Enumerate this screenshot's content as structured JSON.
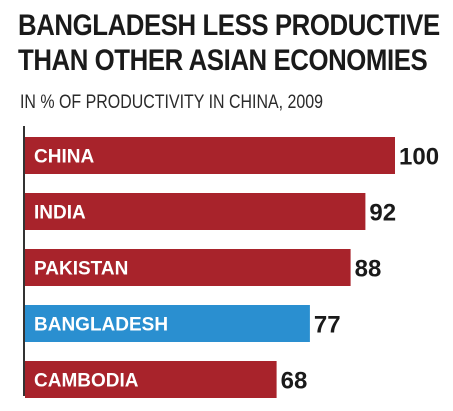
{
  "chart_data": {
    "type": "bar",
    "orientation": "horizontal",
    "title_lines": [
      "BANGLADESH LESS PRODUCTIVE",
      "THAN OTHER ASIAN ECONOMIES"
    ],
    "subtitle": "IN % OF PRODUCTIVITY IN CHINA, 2009",
    "categories": [
      "CHINA",
      "INDIA",
      "PAKISTAN",
      "BANGLADESH",
      "CAMBODIA"
    ],
    "values": [
      100,
      92,
      88,
      77,
      68
    ],
    "value_labels": [
      "100",
      "92",
      "88",
      "77",
      "68"
    ],
    "colors": [
      "#a8232b",
      "#a8232b",
      "#a8232b",
      "#2a8fd0",
      "#a8232b"
    ],
    "xlim": [
      0,
      100
    ],
    "grid": false,
    "legend": "none"
  }
}
